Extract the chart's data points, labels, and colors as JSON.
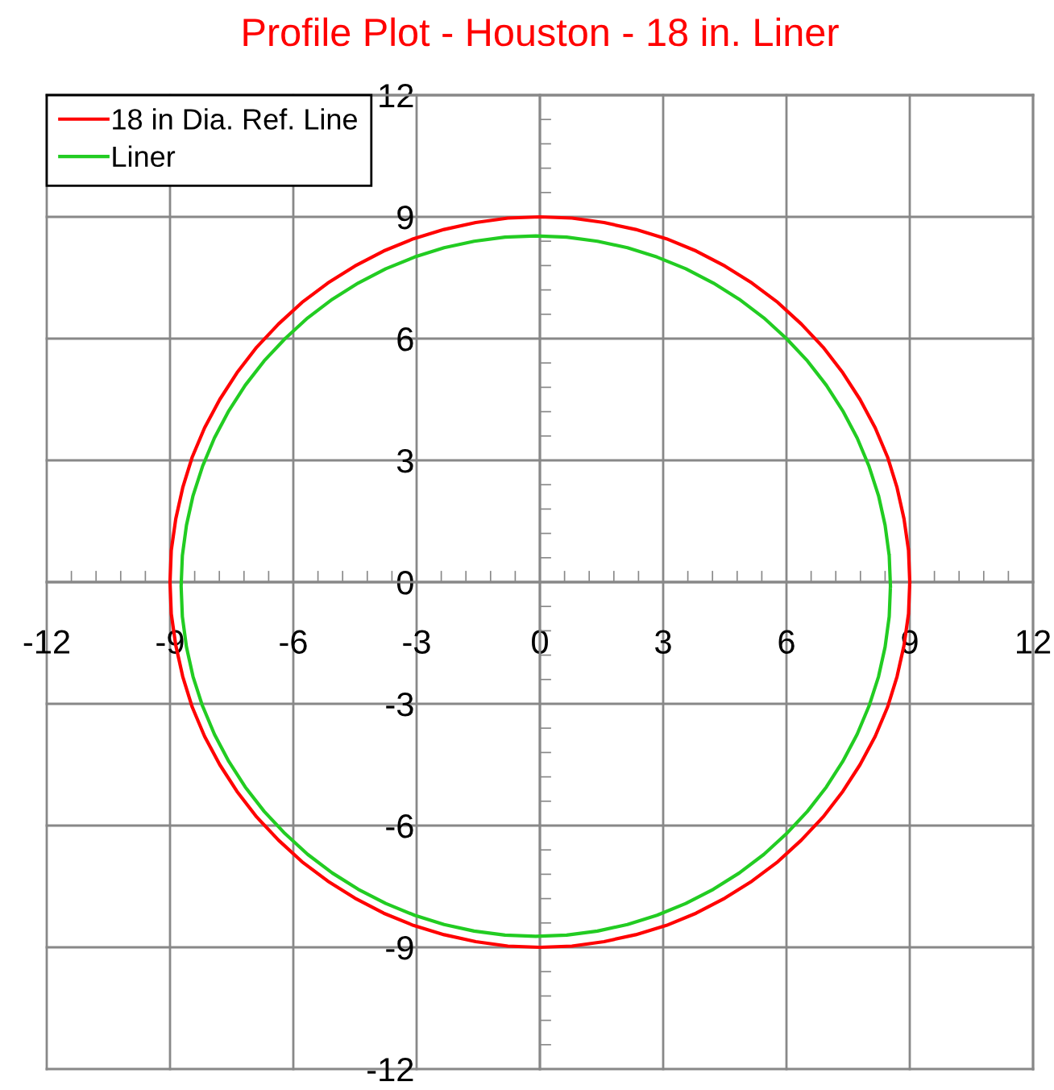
{
  "chart_data": {
    "type": "line",
    "title": "Profile Plot - Houston - 18 in. Liner",
    "series": [
      {
        "name": "18 in Dia. Ref. Line",
        "color": "#ff0000",
        "x": [
          9,
          8.97,
          8.86,
          8.69,
          8.46,
          8.16,
          7.79,
          7.37,
          6.89,
          6.36,
          5.79,
          5.16,
          4.5,
          3.8,
          3.08,
          2.33,
          1.56,
          0.78,
          0,
          -0.78,
          -1.56,
          -2.33,
          -3.08,
          -3.8,
          -4.5,
          -5.16,
          -5.79,
          -6.36,
          -6.89,
          -7.37,
          -7.79,
          -8.16,
          -8.46,
          -8.69,
          -8.86,
          -8.97,
          -9,
          -8.97,
          -8.86,
          -8.69,
          -8.46,
          -8.16,
          -7.79,
          -7.37,
          -6.89,
          -6.36,
          -5.79,
          -5.16,
          -4.5,
          -3.8,
          -3.08,
          -2.33,
          -1.56,
          -0.78,
          0,
          0.78,
          1.56,
          2.33,
          3.08,
          3.8,
          4.5,
          5.16,
          5.79,
          6.36,
          6.89,
          7.37,
          7.79,
          8.16,
          8.46,
          8.69,
          8.86,
          8.97,
          9,
          8.97
        ],
        "values": [
          0,
          0.78,
          1.56,
          2.33,
          3.08,
          3.8,
          4.5,
          5.16,
          5.79,
          6.36,
          6.89,
          7.37,
          7.79,
          8.16,
          8.46,
          8.69,
          8.86,
          8.97,
          9,
          8.97,
          8.86,
          8.69,
          8.46,
          8.16,
          7.79,
          7.37,
          6.89,
          6.36,
          5.79,
          5.16,
          4.5,
          3.8,
          3.08,
          2.33,
          1.56,
          0.78,
          0,
          -0.78,
          -1.56,
          -2.33,
          -3.08,
          -3.8,
          -4.5,
          -5.16,
          -5.79,
          -6.36,
          -6.89,
          -7.37,
          -7.79,
          -8.16,
          -8.46,
          -8.69,
          -8.86,
          -8.97,
          -9,
          -8.97,
          -8.86,
          -8.69,
          -8.46,
          -8.16,
          -7.79,
          -7.37,
          -6.89,
          -6.36,
          -5.79,
          -5.16,
          -4.5,
          -3.8,
          -3.08,
          -2.33,
          -1.56,
          -0.78,
          0,
          0.78
        ]
      },
      {
        "name": "Liner",
        "color": "#22cc22",
        "x": [
          8.53,
          8.5,
          8.4,
          8.24,
          8.01,
          7.72,
          7.37,
          6.97,
          6.51,
          6.0,
          5.45,
          4.85,
          4.22,
          3.55,
          2.85,
          2.13,
          1.4,
          0.65,
          -0.1,
          -0.85,
          -1.6,
          -2.33,
          -3.05,
          -3.75,
          -4.42,
          -5.05,
          -5.65,
          -6.2,
          -6.71,
          -7.17,
          -7.57,
          -7.92,
          -8.21,
          -8.44,
          -8.6,
          -8.7,
          -8.73,
          -8.7,
          -8.6,
          -8.44,
          -8.21,
          -7.92,
          -7.57,
          -7.17,
          -6.71,
          -6.2,
          -5.65,
          -5.05,
          -4.42,
          -3.75,
          -3.05,
          -2.33,
          -1.6,
          -0.85,
          -0.1,
          0.65,
          1.4,
          2.13,
          2.85,
          3.55,
          4.22,
          4.85,
          5.45,
          6.0,
          6.51,
          6.97,
          7.37,
          7.72,
          8.01,
          8.24,
          8.4,
          8.5,
          8.53,
          8.5
        ],
        "values": [
          -0.1,
          0.65,
          1.4,
          2.13,
          2.85,
          3.55,
          4.22,
          4.85,
          5.45,
          6.0,
          6.51,
          6.97,
          7.37,
          7.72,
          8.01,
          8.24,
          8.4,
          8.5,
          8.53,
          8.5,
          8.4,
          8.24,
          8.01,
          7.72,
          7.37,
          6.97,
          6.51,
          6.0,
          5.45,
          4.85,
          4.22,
          3.55,
          2.85,
          2.13,
          1.4,
          0.65,
          -0.1,
          -0.85,
          -1.6,
          -2.33,
          -3.05,
          -3.75,
          -4.42,
          -5.05,
          -5.65,
          -6.2,
          -6.71,
          -7.17,
          -7.57,
          -7.92,
          -8.21,
          -8.44,
          -8.6,
          -8.7,
          -8.73,
          -8.7,
          -8.6,
          -8.44,
          -8.21,
          -7.92,
          -7.57,
          -7.17,
          -6.71,
          -6.2,
          -5.65,
          -5.05,
          -4.42,
          -3.75,
          -3.05,
          -2.33,
          -1.6,
          -0.85,
          -0.1,
          0.65
        ]
      }
    ],
    "xlim": [
      -12,
      12
    ],
    "ylim": [
      -12,
      12
    ],
    "xticks": [
      -12,
      -9,
      -6,
      -3,
      0,
      3,
      6,
      9,
      12
    ],
    "yticks": [
      -12,
      -9,
      -6,
      -3,
      0,
      3,
      6,
      9,
      12
    ],
    "grid": true,
    "legend": "top left",
    "line_style": "solid"
  }
}
